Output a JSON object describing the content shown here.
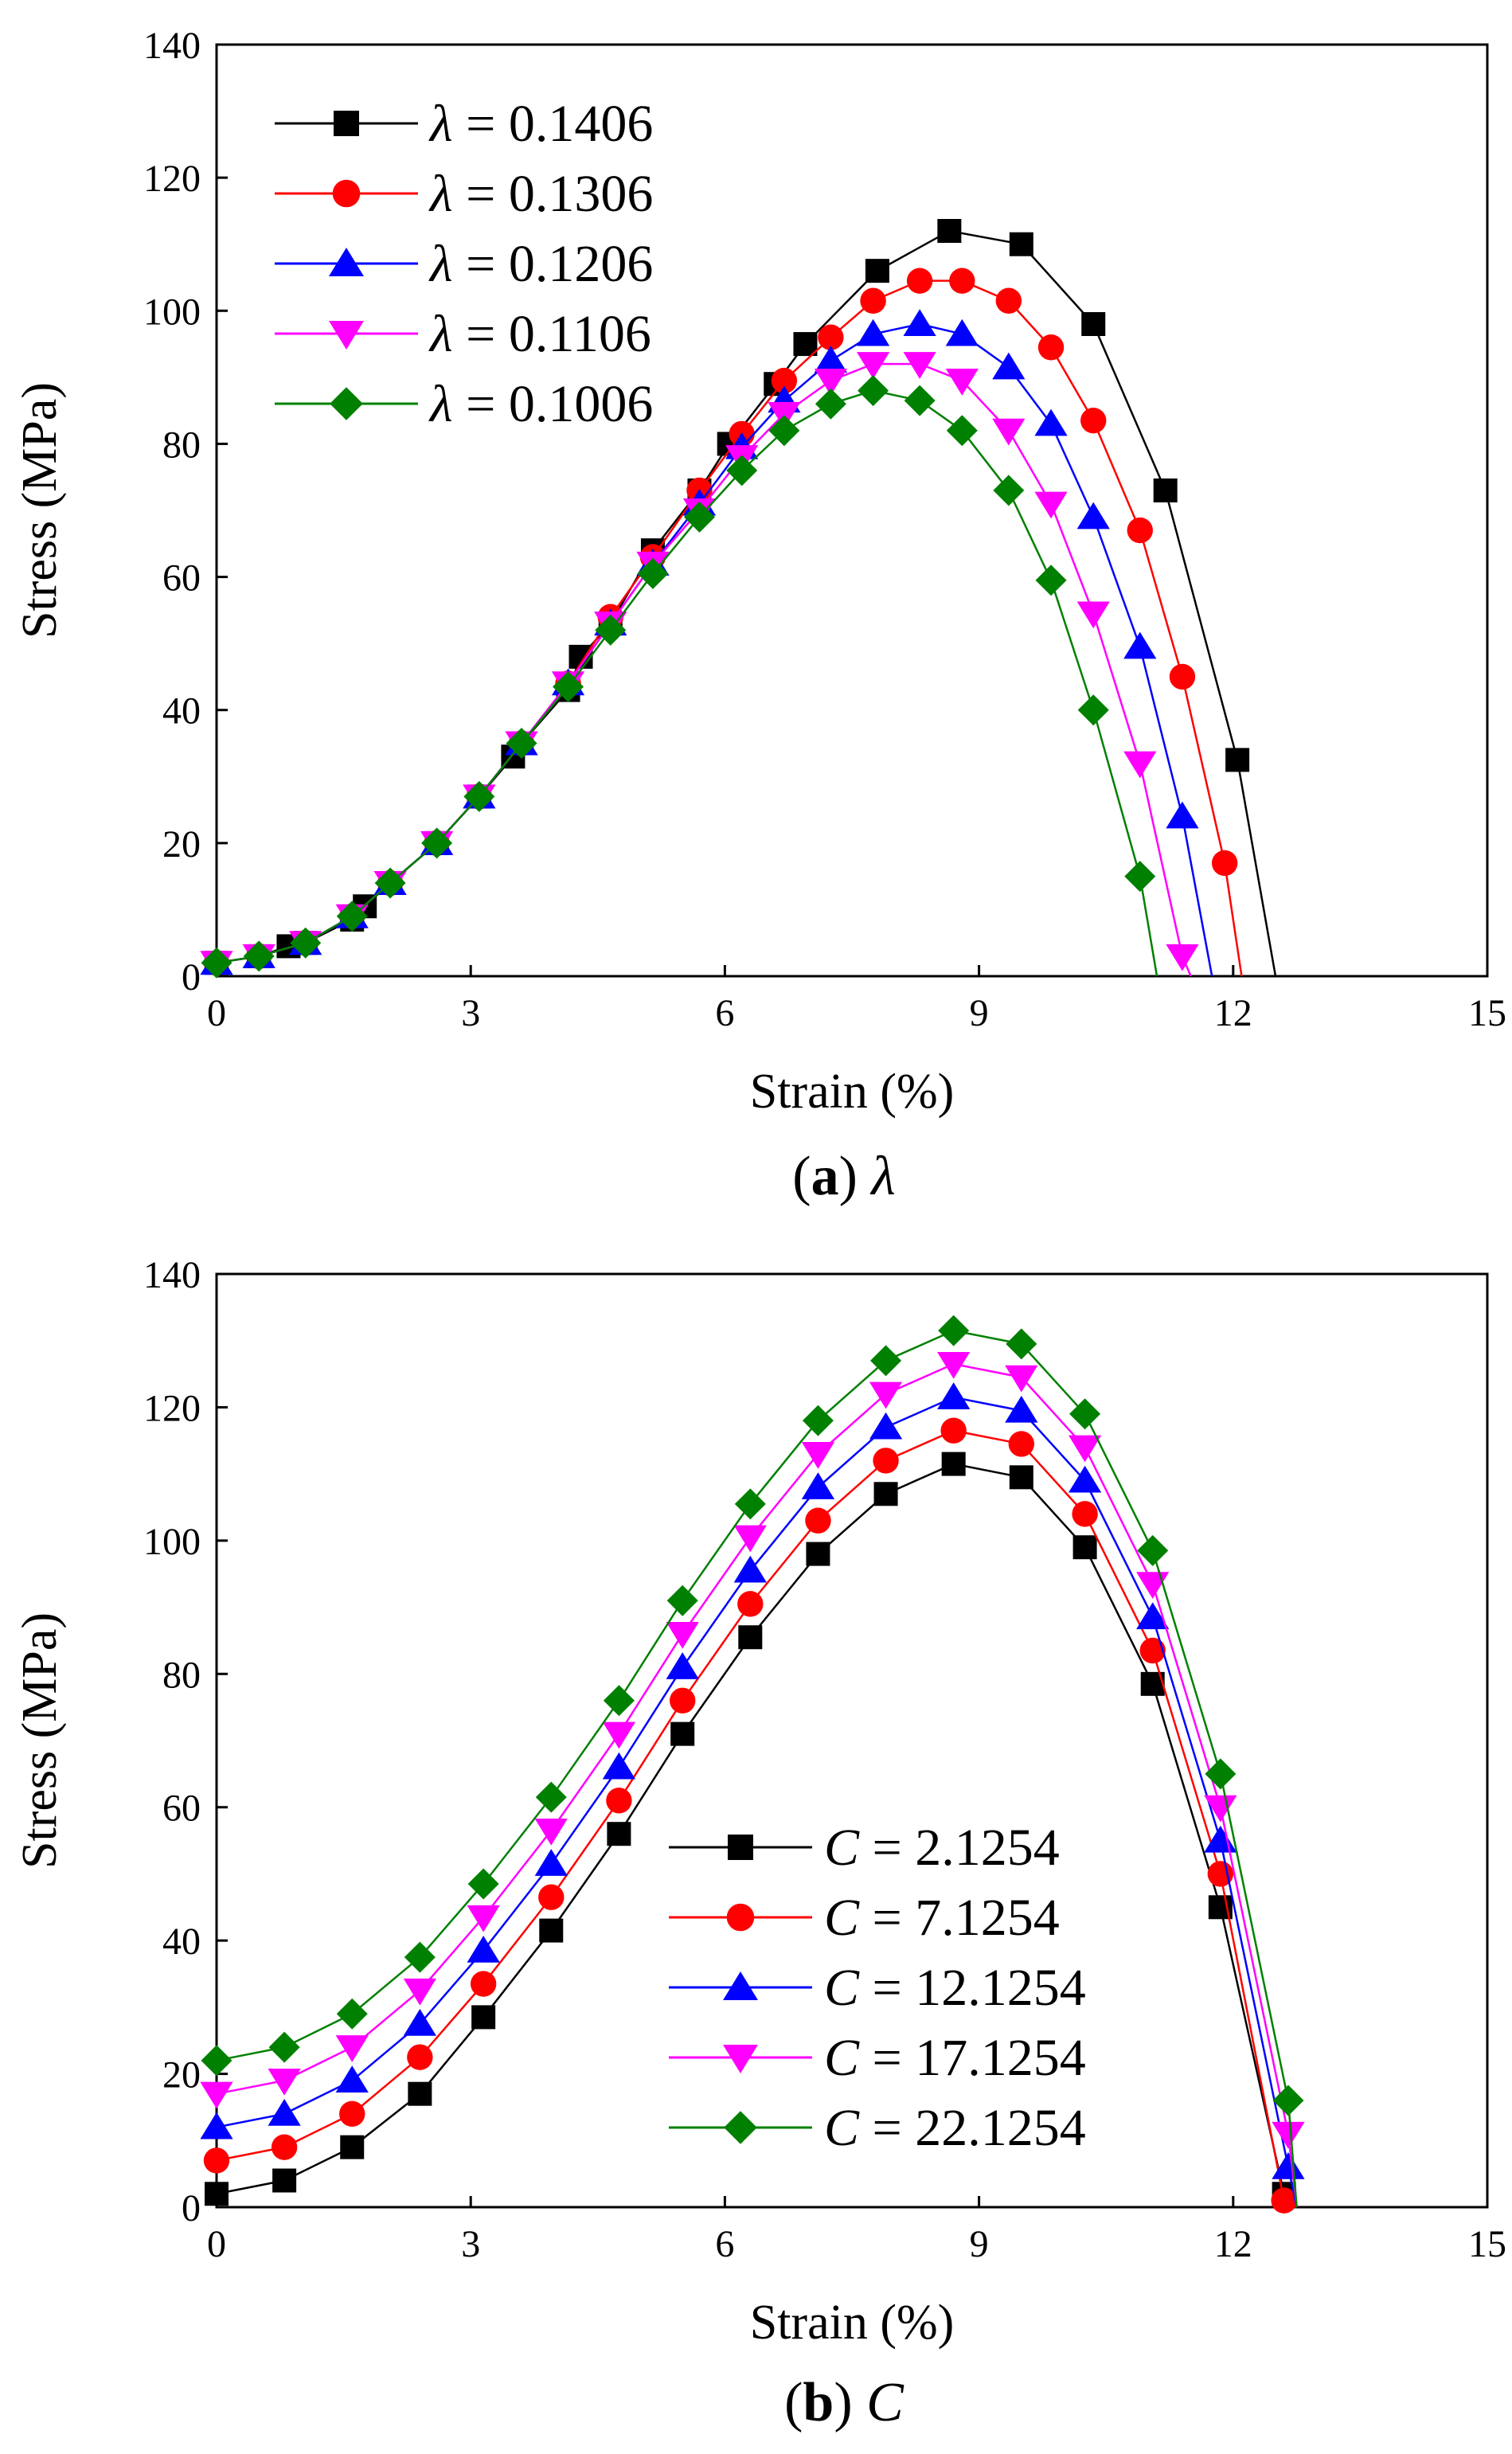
{
  "chart_data": [
    {
      "type": "line",
      "panel": "a",
      "caption_letter": "a",
      "caption_param": "λ",
      "xlabel": "Strain (%)",
      "ylabel": "Stress (MPa)",
      "xlim": [
        0,
        15
      ],
      "ylim": [
        0,
        140
      ],
      "xticks": [
        0,
        3,
        6,
        9,
        12,
        15
      ],
      "yticks": [
        0,
        20,
        40,
        60,
        80,
        100,
        120,
        140
      ],
      "legend_position": "top-left",
      "series": [
        {
          "name": "0.1406",
          "param": "λ",
          "color": "#000000",
          "marker": "square",
          "x": [
            0,
            0.5,
            0.85,
            1.05,
            1.6,
            1.75,
            2.05,
            2.6,
            3.1,
            3.5,
            3.6,
            4.15,
            4.3,
            4.65,
            5.15,
            5.7,
            6.05,
            6.6,
            6.95,
            7.8,
            8.65,
            9.5,
            10.35,
            11.2,
            12.05,
            12.5
          ],
          "y": [
            2,
            3,
            4.5,
            5,
            8.5,
            10.5,
            14,
            20,
            27,
            33,
            35,
            43,
            48,
            53,
            64,
            73,
            80,
            89,
            95,
            106,
            112,
            110,
            98,
            73,
            32.5,
            0
          ]
        },
        {
          "name": "0.1306",
          "param": "λ",
          "color": "#ff0000",
          "marker": "circle",
          "x": [
            0,
            0.5,
            1.05,
            1.6,
            2.05,
            2.6,
            3.1,
            3.6,
            4.15,
            4.65,
            5.15,
            5.7,
            6.2,
            6.7,
            7.25,
            7.75,
            8.3,
            8.8,
            9.35,
            9.85,
            10.35,
            10.9,
            11.4,
            11.9,
            12.1
          ],
          "y": [
            2,
            3,
            5,
            9,
            14,
            20,
            27,
            35,
            44,
            54,
            63,
            73,
            81.5,
            89.5,
            96,
            101.5,
            104.5,
            104.5,
            101.5,
            94.5,
            83.5,
            67,
            45,
            17,
            0
          ]
        },
        {
          "name": "0.1206",
          "param": "λ",
          "color": "#0000ff",
          "marker": "triangle-up",
          "x": [
            0,
            0.5,
            1.05,
            1.6,
            2.05,
            2.6,
            3.1,
            3.6,
            4.15,
            4.65,
            5.15,
            5.7,
            6.2,
            6.7,
            7.25,
            7.75,
            8.3,
            8.8,
            9.35,
            9.85,
            10.35,
            10.9,
            11.4,
            11.75
          ],
          "y": [
            2,
            3,
            5,
            9,
            14,
            20,
            27,
            35,
            44,
            53,
            62,
            71,
            79.5,
            86.5,
            92.5,
            96.5,
            98,
            96.5,
            91.5,
            83,
            69,
            49.5,
            24,
            0
          ]
        },
        {
          "name": "0.1106",
          "param": "λ",
          "color": "#ff00ff",
          "marker": "triangle-down",
          "x": [
            0,
            0.5,
            1.05,
            1.6,
            2.05,
            2.6,
            3.1,
            3.6,
            4.15,
            4.65,
            5.15,
            5.7,
            6.2,
            6.7,
            7.25,
            7.75,
            8.3,
            8.8,
            9.35,
            9.85,
            10.35,
            10.9,
            11.4,
            11.5
          ],
          "y": [
            2,
            3,
            5,
            9,
            14,
            20,
            27,
            35,
            44,
            53,
            62,
            70,
            78,
            84.5,
            89.5,
            92,
            92,
            89.5,
            82,
            71,
            54.5,
            32,
            3,
            0
          ]
        },
        {
          "name": "0.1006",
          "param": "λ",
          "color": "#008000",
          "marker": "diamond",
          "x": [
            0,
            0.5,
            1.05,
            1.6,
            2.05,
            2.6,
            3.1,
            3.6,
            4.15,
            4.65,
            5.15,
            5.7,
            6.2,
            6.7,
            7.25,
            7.75,
            8.3,
            8.8,
            9.35,
            9.85,
            10.35,
            10.9,
            11.1
          ],
          "y": [
            2,
            3,
            5,
            9,
            14,
            20,
            27,
            35,
            43.5,
            52,
            60.5,
            69,
            76,
            82,
            86,
            88,
            86.5,
            82,
            73,
            59.5,
            40,
            15,
            0
          ]
        }
      ]
    },
    {
      "type": "line",
      "panel": "b",
      "caption_letter": "b",
      "caption_param": "C",
      "xlabel": "Strain (%)",
      "ylabel": "Stress (MPa)",
      "xlim": [
        0,
        15
      ],
      "ylim": [
        0,
        140
      ],
      "xticks": [
        0,
        3,
        6,
        9,
        12,
        15
      ],
      "yticks": [
        0,
        20,
        40,
        60,
        80,
        100,
        120,
        140
      ],
      "legend_position": "lower-center",
      "series": [
        {
          "name": "2.1254",
          "param": "C",
          "color": "#000000",
          "marker": "square",
          "x": [
            0,
            0.8,
            1.6,
            2.4,
            3.15,
            3.95,
            4.75,
            5.5,
            6.3,
            7.1,
            7.9,
            8.7,
            9.5,
            10.25,
            11.05,
            11.85,
            12.6,
            12.7
          ],
          "y": [
            2,
            4,
            9,
            17,
            28.5,
            41.5,
            56,
            71,
            85.5,
            98,
            107,
            111.5,
            109.5,
            99,
            78.5,
            45,
            2,
            0
          ]
        },
        {
          "name": "7.1254",
          "param": "C",
          "color": "#ff0000",
          "marker": "circle",
          "x": [
            0,
            0.8,
            1.6,
            2.4,
            3.15,
            3.95,
            4.75,
            5.5,
            6.3,
            7.1,
            7.9,
            8.7,
            9.5,
            10.25,
            11.05,
            11.85,
            12.6,
            12.75
          ],
          "y": [
            7,
            9,
            14,
            22.5,
            33.5,
            46.5,
            61,
            76,
            90.5,
            103,
            112,
            116.5,
            114.5,
            104,
            83.5,
            50,
            1,
            0
          ]
        },
        {
          "name": "12.1254",
          "param": "C",
          "color": "#0000ff",
          "marker": "triangle-up",
          "x": [
            0,
            0.8,
            1.6,
            2.4,
            3.15,
            3.95,
            4.75,
            5.5,
            6.3,
            7.1,
            7.9,
            8.7,
            9.5,
            10.25,
            11.05,
            11.85,
            12.65,
            12.75
          ],
          "y": [
            12,
            14,
            19,
            27.5,
            38.5,
            51.5,
            66,
            81,
            95.5,
            108,
            117,
            121.5,
            119.5,
            109,
            88.5,
            55,
            6,
            0
          ]
        },
        {
          "name": "17.1254",
          "param": "C",
          "color": "#ff00ff",
          "marker": "triangle-down",
          "x": [
            0,
            0.8,
            1.6,
            2.4,
            3.15,
            3.95,
            4.75,
            5.5,
            6.3,
            7.1,
            7.9,
            8.7,
            9.5,
            10.25,
            11.05,
            11.85,
            12.65,
            12.75
          ],
          "y": [
            17,
            19,
            24,
            32.5,
            43.5,
            56.5,
            71,
            86,
            100.5,
            113,
            122,
            126.5,
            124.5,
            114,
            93.5,
            60,
            11,
            0
          ]
        },
        {
          "name": "22.1254",
          "param": "C",
          "color": "#008000",
          "marker": "diamond",
          "x": [
            0,
            0.8,
            1.6,
            2.4,
            3.15,
            3.95,
            4.75,
            5.5,
            6.3,
            7.1,
            7.9,
            8.7,
            9.5,
            10.25,
            11.05,
            11.85,
            12.65,
            12.75
          ],
          "y": [
            22,
            24,
            29,
            37.5,
            48.5,
            61.5,
            76,
            91,
            105.5,
            118,
            127,
            131.5,
            129.5,
            119,
            98.5,
            65,
            16,
            0
          ]
        }
      ]
    }
  ]
}
